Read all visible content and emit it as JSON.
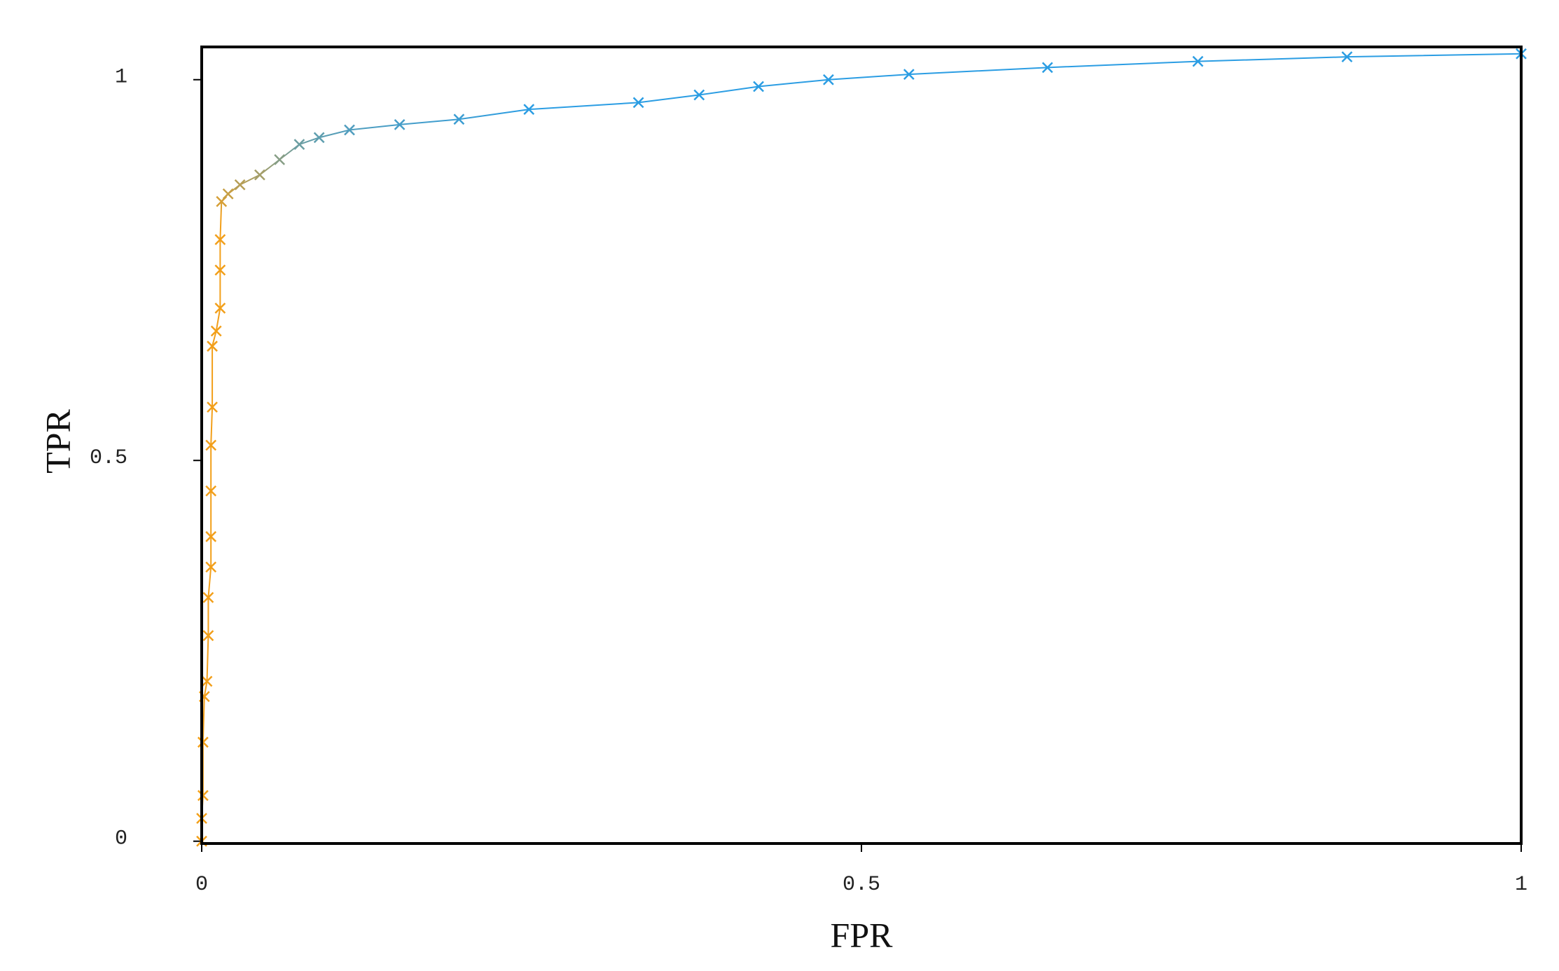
{
  "chart_data": {
    "type": "line",
    "marker": "x",
    "x_label": "FPR",
    "y_label": "TPR",
    "xlim": [
      0,
      1
    ],
    "ylim": [
      -0.003,
      1.043
    ],
    "xticks": [
      0,
      0.5,
      1
    ],
    "yticks": [
      0,
      0.5,
      1
    ],
    "colors": [
      "#f29f1a",
      "#2b9de3"
    ],
    "color_range": [
      0.82,
      0.96
    ],
    "series": [
      {
        "x": [
          0,
          0,
          0.001,
          0.001,
          0.002,
          0.004,
          0.005,
          0.005,
          0.007,
          0.007,
          0.007,
          0.007,
          0.008,
          0.008,
          0.011,
          0.014,
          0.014,
          0.014,
          0.015,
          0.02,
          0.029,
          0.044,
          0.059,
          0.074,
          0.089,
          0.112,
          0.15,
          0.195,
          0.248,
          0.331,
          0.377,
          0.422,
          0.475,
          0.536,
          0.641,
          0.755,
          0.868,
          1.0
        ],
        "values": [
          0,
          0.03,
          0.06,
          0.13,
          0.19,
          0.21,
          0.27,
          0.32,
          0.36,
          0.4,
          0.46,
          0.52,
          0.57,
          0.65,
          0.67,
          0.7,
          0.75,
          0.79,
          0.84,
          0.85,
          0.862,
          0.875,
          0.895,
          0.915,
          0.924,
          0.934,
          0.941,
          0.948,
          0.961,
          0.97,
          0.98,
          0.991,
          1.0,
          1.007,
          1.016,
          1.024,
          1.03,
          1.034
        ]
      }
    ]
  }
}
